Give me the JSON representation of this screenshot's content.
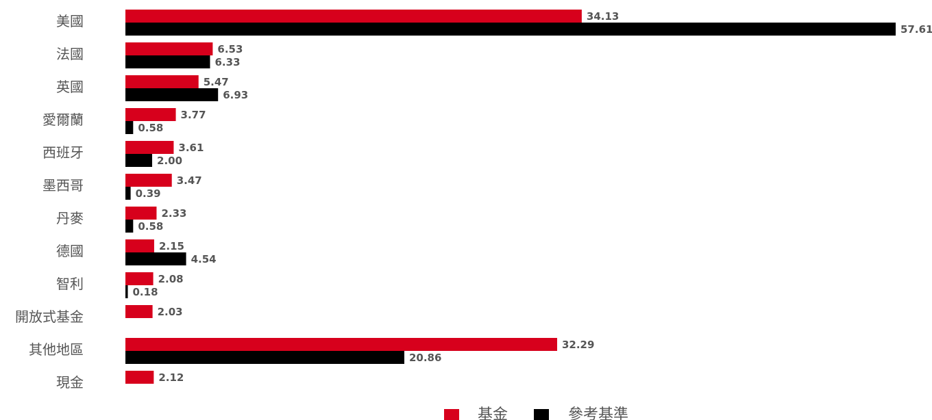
{
  "chart_data": {
    "type": "bar",
    "orientation": "horizontal",
    "categories": [
      "美國",
      "法國",
      "英國",
      "愛爾蘭",
      "西班牙",
      "墨西哥",
      "丹麥",
      "德國",
      "智利",
      "開放式基金",
      "其他地區",
      "現金"
    ],
    "series": [
      {
        "name": "基金",
        "color": "#d7001c",
        "values": [
          34.13,
          6.53,
          5.47,
          3.77,
          3.61,
          3.47,
          2.33,
          2.15,
          2.08,
          2.03,
          32.29,
          2.12
        ],
        "labels": [
          "34.13",
          "6.53",
          "5.47",
          "3.77",
          "3.61",
          "3.47",
          "2.33",
          "2.15",
          "2.08",
          "2.03",
          "32.29",
          "2.12"
        ]
      },
      {
        "name": "參考基準",
        "color": "#000000",
        "values": [
          57.61,
          6.33,
          6.93,
          0.58,
          2.0,
          0.39,
          0.58,
          4.54,
          0.18,
          null,
          20.86,
          null
        ],
        "labels": [
          "57.61",
          "6.33",
          "6.93",
          "0.58",
          "2.00",
          "0.39",
          "0.58",
          "4.54",
          "0.18",
          null,
          "20.86",
          null
        ]
      }
    ],
    "xlim": [
      0,
      57.61
    ],
    "grid": false,
    "legend_position": "bottom-center"
  }
}
